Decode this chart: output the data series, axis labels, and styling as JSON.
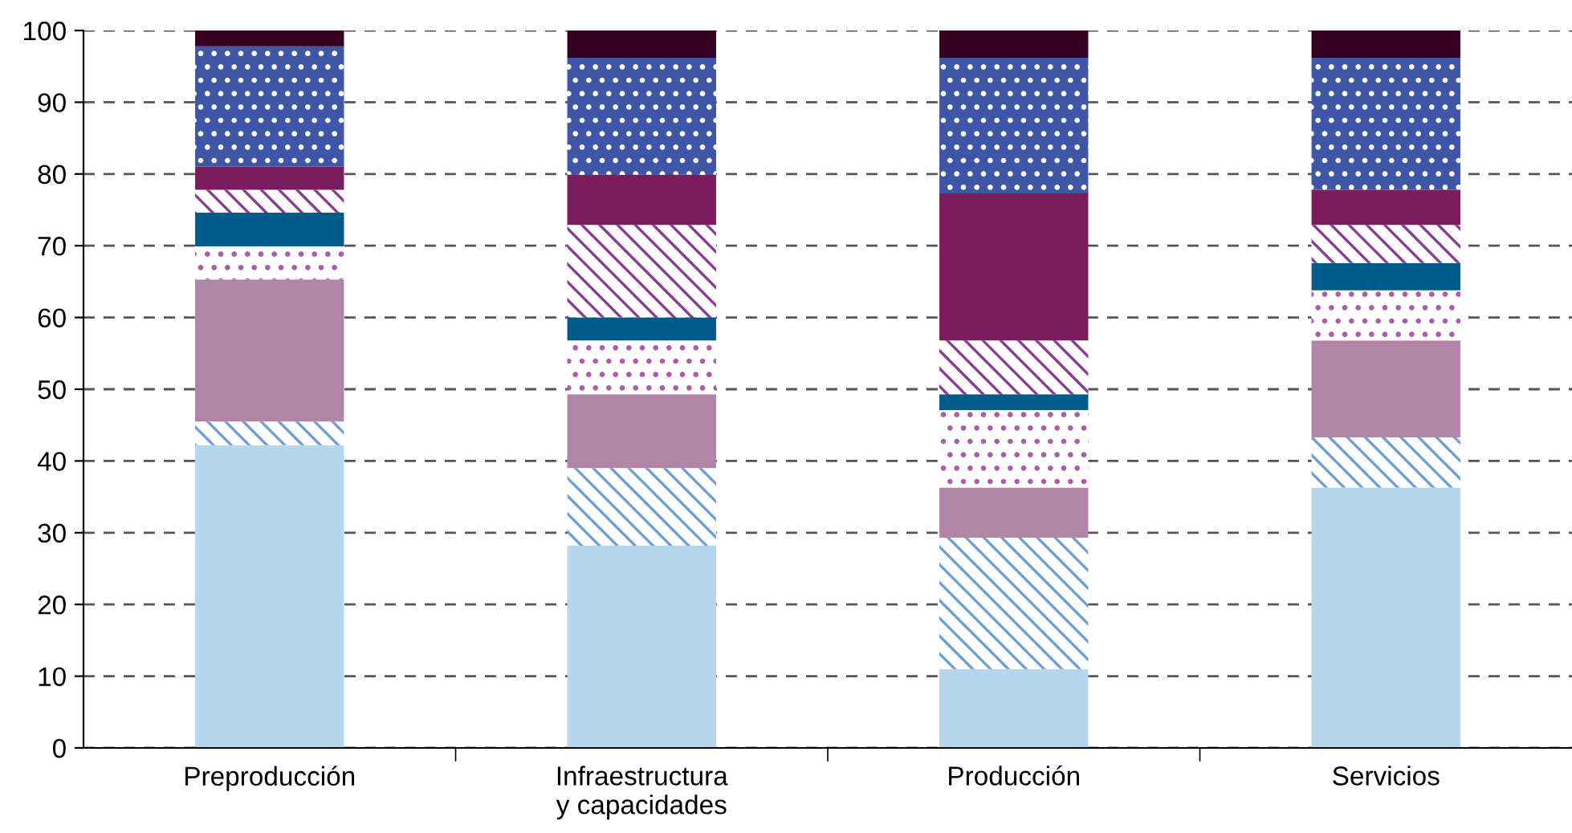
{
  "chart_data": {
    "type": "bar",
    "stacked": true,
    "categories": [
      "Preproducción",
      "Infraestructura\ny capacidades",
      "Producción",
      "Servicios"
    ],
    "series": [
      {
        "color": "#b5d6ec",
        "values": [
          42.2,
          28.2,
          11.0,
          36.3
        ]
      },
      {
        "color": "#6a9fd8",
        "values": [
          3.3,
          10.8,
          18.3,
          7.0
        ]
      },
      {
        "color": "#b085a8",
        "values": [
          19.8,
          10.3,
          7.0,
          13.5
        ]
      },
      {
        "color": "#b05aaf",
        "values": [
          4.6,
          7.5,
          10.8,
          7.0
        ]
      },
      {
        "color": "#005a8a",
        "values": [
          4.7,
          3.2,
          2.2,
          3.8
        ]
      },
      {
        "color": "#8a3a92",
        "values": [
          3.2,
          12.9,
          7.5,
          5.3
        ]
      },
      {
        "color": "#7b1c5c",
        "values": [
          3.2,
          7.0,
          20.5,
          4.9
        ]
      },
      {
        "color": "#3f55a6",
        "values": [
          16.8,
          16.3,
          18.9,
          18.4
        ]
      },
      {
        "color": "#360020",
        "values": [
          2.2,
          3.8,
          3.8,
          3.8
        ]
      }
    ],
    "ylim": [
      0,
      100
    ],
    "yticks": [
      0,
      10,
      20,
      30,
      40,
      50,
      60,
      70,
      80,
      90,
      100
    ],
    "grid": "y",
    "legend": false
  }
}
